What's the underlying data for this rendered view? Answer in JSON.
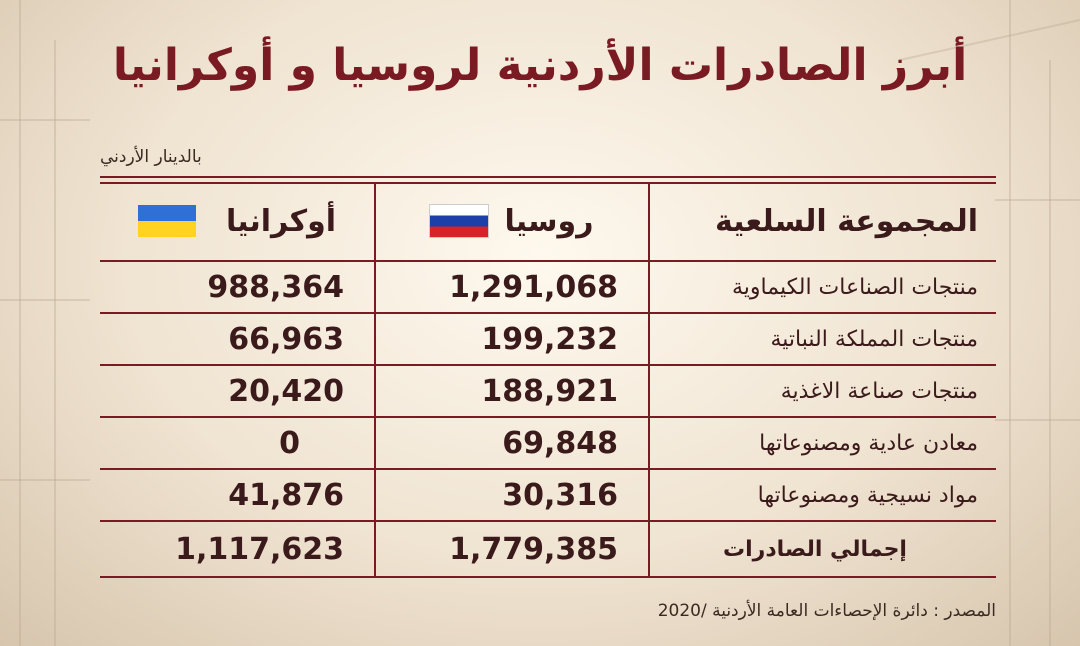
{
  "title": "أبرز الصادرات الأردنية لروسيا و أوكرانيا",
  "unit": "بالدينار الأردني",
  "headers": {
    "group": "المجموعة السلعية",
    "russia": "روسيا",
    "ukraine": "أوكرانيا"
  },
  "flags": {
    "russia": [
      "#ffffff",
      "#1c3fa8",
      "#d6222a"
    ],
    "ukraine": [
      "#2f6fd6",
      "#ffd320"
    ]
  },
  "rows": [
    {
      "group": "منتجات الصناعات الكيماوية",
      "russia": "1,291,068",
      "ukraine": "988,364"
    },
    {
      "group": "منتجات المملكة النباتية",
      "russia": "199,232",
      "ukraine": "66,963"
    },
    {
      "group": "منتجات صناعة الاغذية",
      "russia": "188,921",
      "ukraine": "20,420"
    },
    {
      "group": "معادن عادية ومصنوعاتها",
      "russia": "69,848",
      "ukraine": "0"
    },
    {
      "group": "مواد نسيجية ومصنوعاتها",
      "russia": "30,316",
      "ukraine": "41,876"
    }
  ],
  "total": {
    "group": "إجمالي الصادرات",
    "russia": "1,779,385",
    "ukraine": "1,117,623"
  },
  "source": "المصدر : دائرة الإحصاءات العامة الأردنية /2020"
}
